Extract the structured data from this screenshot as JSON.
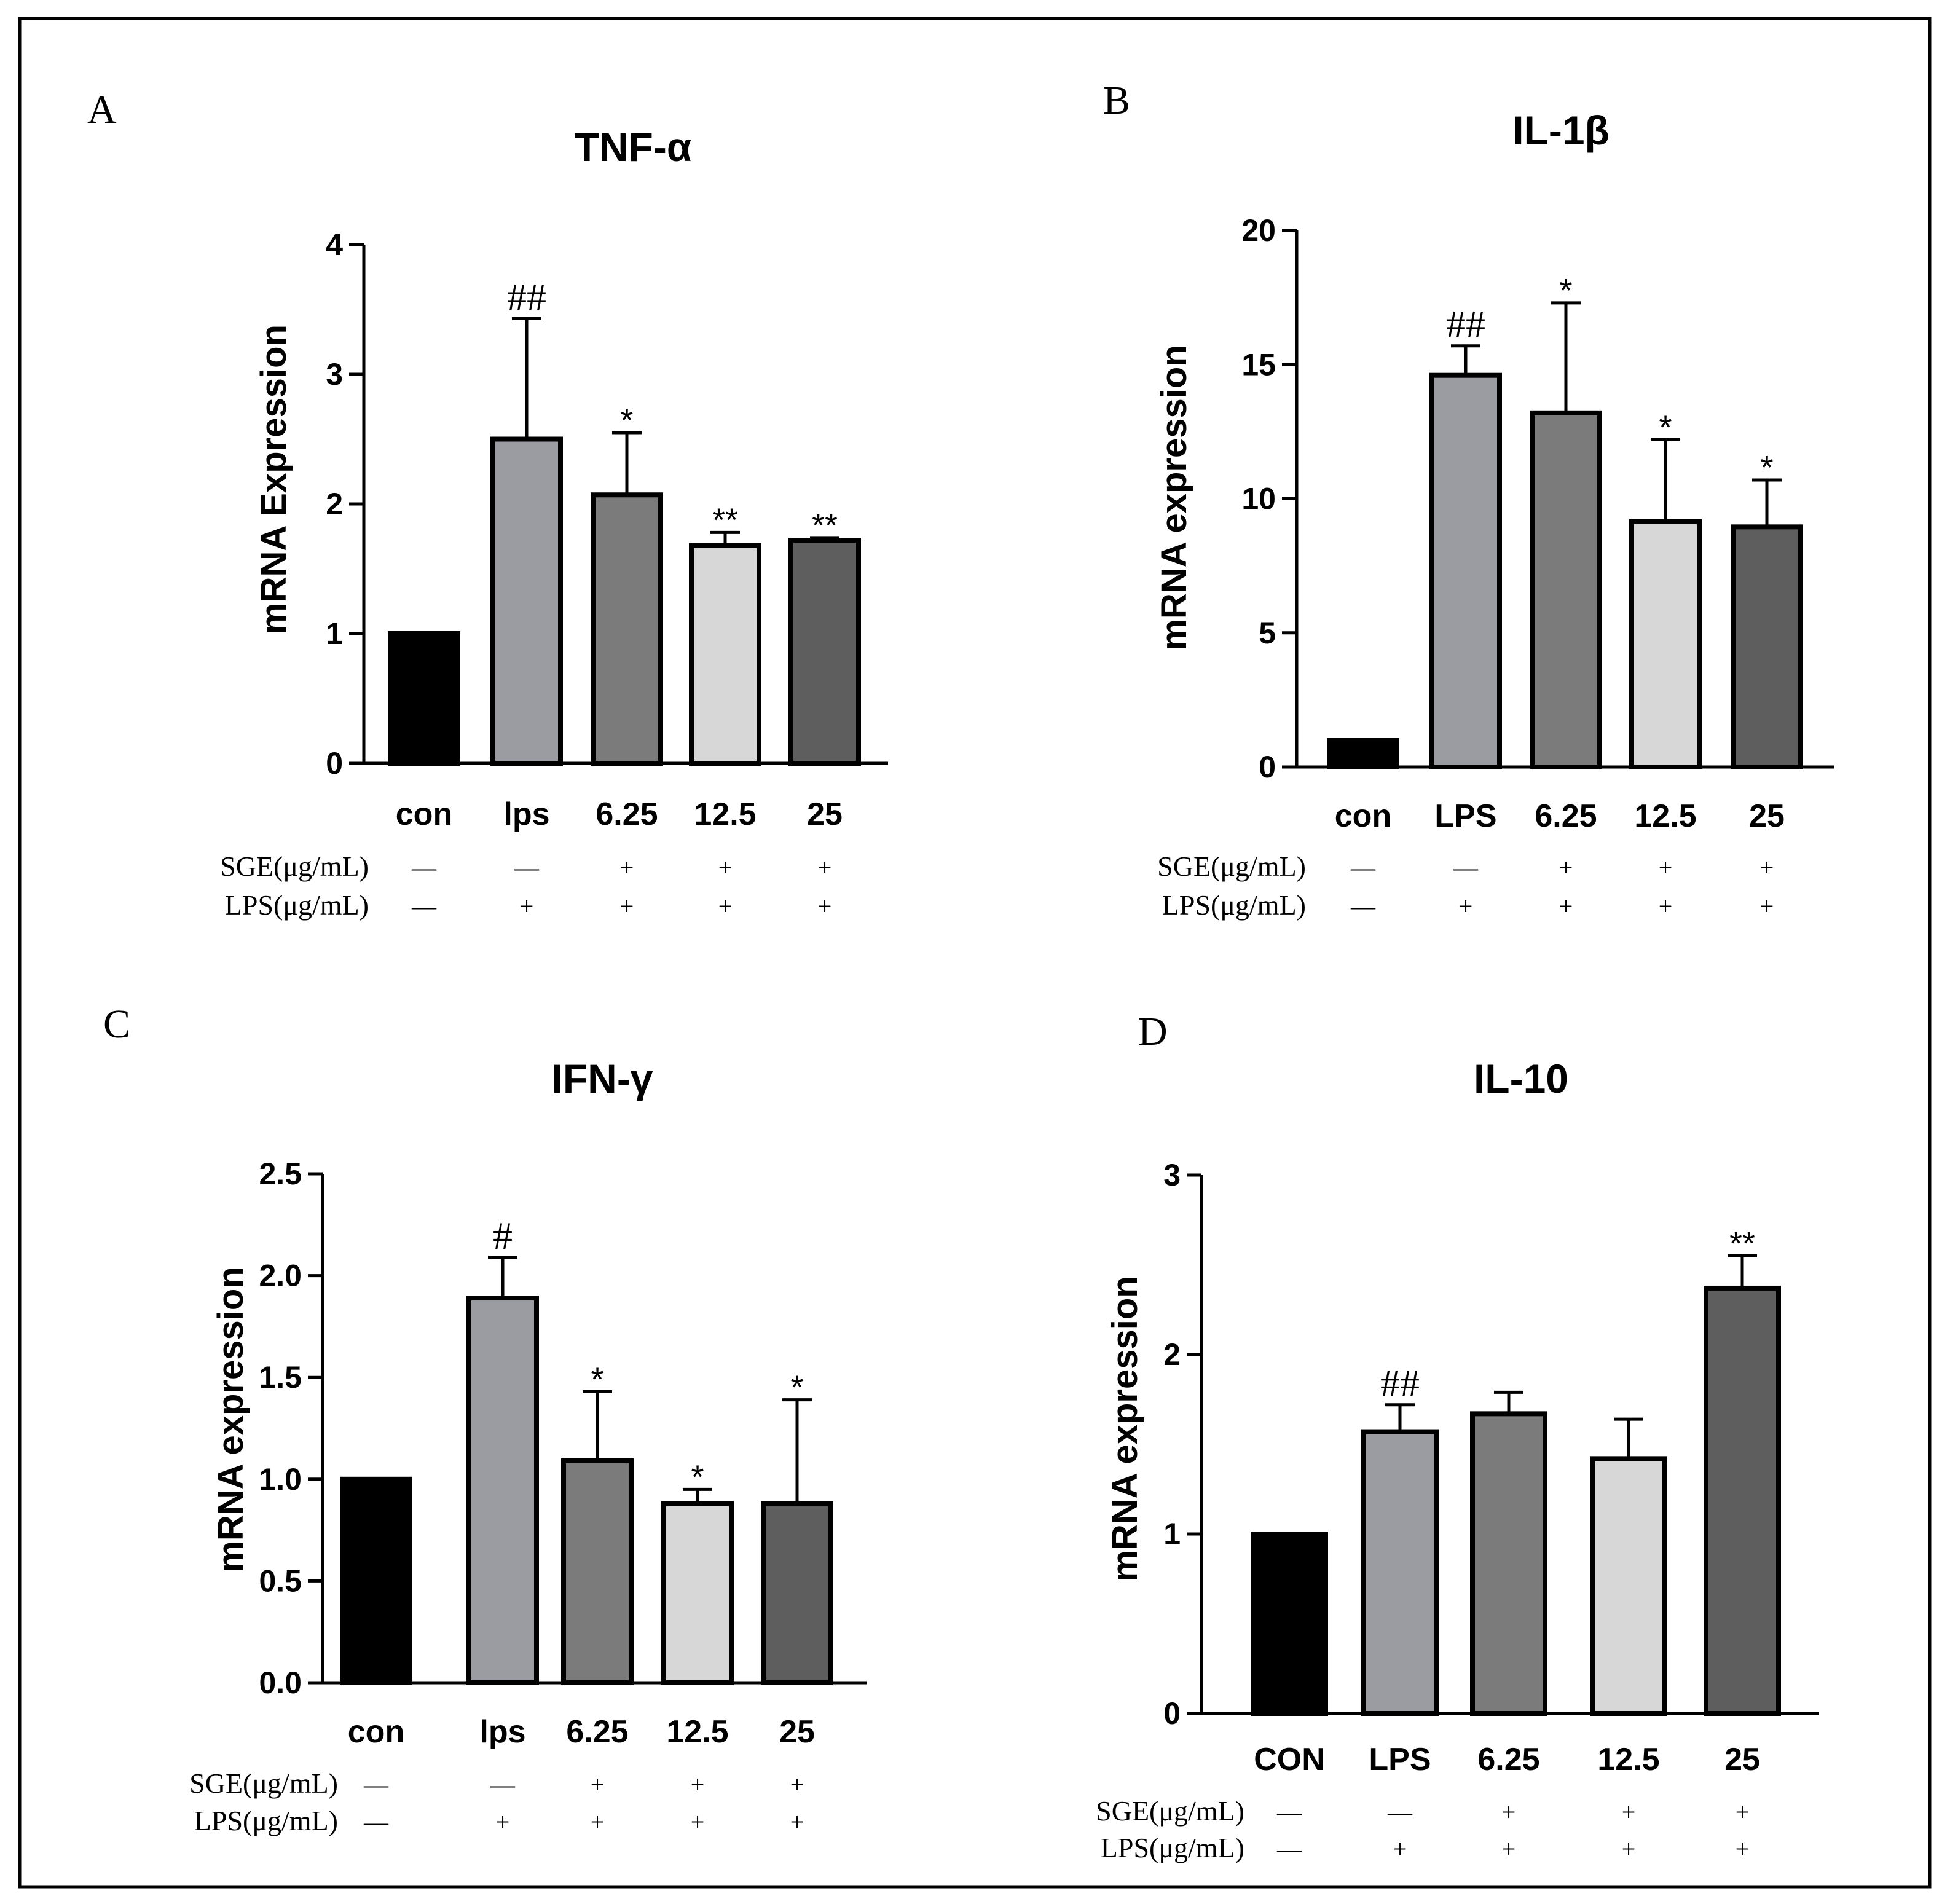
{
  "chart_data": [
    {
      "type": "bar",
      "panel_label": "A",
      "title": "TNF-α",
      "ylabel": "mRNA Expression",
      "ylim": [
        0,
        4
      ],
      "yticks": [
        "0",
        "1",
        "2",
        "3",
        "4"
      ],
      "categories": [
        "con",
        "lps",
        "6.25",
        "12.5",
        "25"
      ],
      "values": [
        1.0,
        2.5,
        2.07,
        1.68,
        1.72
      ],
      "errors": [
        0,
        0.93,
        0.48,
        0.1,
        0.02
      ],
      "annotations": [
        "",
        "##",
        "*",
        "**",
        "**"
      ],
      "bar_colors": [
        "#000000",
        "#9a9ca2",
        "#7b7b7b",
        "#d7d7d7",
        "#5e5e5e"
      ],
      "rows": [
        {
          "label": "SGE(μg/mL)",
          "signs": [
            "—",
            "—",
            "+",
            "+",
            "+"
          ]
        },
        {
          "label": "LPS(μg/mL)",
          "signs": [
            "—",
            "+",
            "+",
            "+",
            "+"
          ]
        }
      ]
    },
    {
      "type": "bar",
      "panel_label": "B",
      "title": "IL-1β",
      "ylabel": "mRNA expression",
      "ylim": [
        0,
        20
      ],
      "yticks": [
        "0",
        "5",
        "10",
        "15",
        "20"
      ],
      "categories": [
        "con",
        "LPS",
        "6.25",
        "12.5",
        "25"
      ],
      "values": [
        1.0,
        14.6,
        13.2,
        9.15,
        8.95
      ],
      "errors": [
        0,
        1.1,
        4.1,
        3.05,
        1.75
      ],
      "annotations": [
        "",
        "##",
        "*",
        "*",
        "*"
      ],
      "bar_colors": [
        "#000000",
        "#9a9ca2",
        "#7b7b7b",
        "#d7d7d7",
        "#5e5e5e"
      ],
      "rows": [
        {
          "label": "SGE(μg/mL)",
          "signs": [
            "—",
            "—",
            "+",
            "+",
            "+"
          ]
        },
        {
          "label": "LPS(μg/mL)",
          "signs": [
            "—",
            "+",
            "+",
            "+",
            "+"
          ]
        }
      ]
    },
    {
      "type": "bar",
      "panel_label": "C",
      "title": "IFN-γ",
      "ylabel": "mRNA expression",
      "ylim": [
        0,
        2.5
      ],
      "yticks": [
        "0.0",
        "0.5",
        "1.0",
        "1.5",
        "2.0",
        "2.5"
      ],
      "categories": [
        "con",
        "lps",
        "6.25",
        "12.5",
        "25"
      ],
      "values": [
        1.0,
        1.89,
        1.09,
        0.88,
        0.88
      ],
      "errors": [
        0,
        0.2,
        0.34,
        0.07,
        0.51
      ],
      "annotations": [
        "",
        "#",
        "*",
        "*",
        "*"
      ],
      "bar_colors": [
        "#000000",
        "#9a9ca2",
        "#7b7b7b",
        "#d7d7d7",
        "#5e5e5e"
      ],
      "rows": [
        {
          "label": "SGE(μg/mL)",
          "signs": [
            "—",
            "—",
            "+",
            "+",
            "+"
          ]
        },
        {
          "label": "LPS(μg/mL)",
          "signs": [
            "—",
            "+",
            "+",
            "+",
            "+"
          ]
        }
      ]
    },
    {
      "type": "bar",
      "panel_label": "D",
      "title": "IL-10",
      "ylabel": "mRNA expression",
      "ylim": [
        0,
        3
      ],
      "yticks": [
        "0",
        "1",
        "2",
        "3"
      ],
      "categories": [
        "CON",
        "LPS",
        "6.25",
        "12.5",
        "25"
      ],
      "values": [
        1.0,
        1.57,
        1.67,
        1.42,
        2.37
      ],
      "errors": [
        0,
        0.15,
        0.12,
        0.22,
        0.18
      ],
      "annotations": [
        "",
        "##",
        "",
        "",
        "**"
      ],
      "bar_colors": [
        "#000000",
        "#9a9ca2",
        "#7b7b7b",
        "#d7d7d7",
        "#5e5e5e"
      ],
      "rows": [
        {
          "label": "SGE(μg/mL)",
          "signs": [
            "—",
            "—",
            "+",
            "+",
            "+"
          ]
        },
        {
          "label": "LPS(μg/mL)",
          "signs": [
            "—",
            "+",
            "+",
            "+",
            "+"
          ]
        }
      ]
    }
  ]
}
